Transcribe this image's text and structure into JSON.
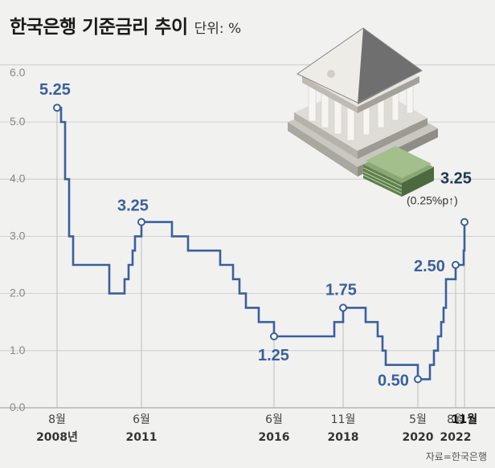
{
  "title": "한국은행 기준금리 추이",
  "unit_label": "단위: %",
  "source": "자료=한국은행",
  "colors": {
    "line": "#3a5f9e",
    "annotation": "#3a5f9e",
    "annotation_dark": "#1f3554",
    "axis": "#888888",
    "grid": "#c8c8c8",
    "background": "#f1f1f0"
  },
  "icon": "bank-building-icon",
  "chart_data": {
    "type": "line",
    "step": true,
    "yticks": [
      "6.0",
      "5.0",
      "4.0",
      "3.0",
      "2.0",
      "1.0",
      "0.0"
    ],
    "ylim": [
      0,
      6
    ],
    "grid": true,
    "series": [
      {
        "values": [
          5.25,
          5.0,
          4.0,
          3.0,
          2.5,
          2.0,
          2.0,
          2.25,
          2.5,
          2.75,
          3.0,
          3.25,
          3.25,
          3.0,
          2.75,
          2.5,
          2.5,
          2.25,
          2.0,
          1.75,
          1.5,
          1.25,
          1.25,
          1.5,
          1.75,
          1.75,
          1.5,
          1.25,
          1.0,
          0.75,
          0.5,
          0.5,
          0.75,
          1.0,
          1.25,
          1.5,
          1.75,
          2.25,
          2.5,
          2.5,
          2.75,
          3.0,
          3.25
        ]
      }
    ],
    "xticks": [
      {
        "month": "8월",
        "year": "2008년",
        "index": 0
      },
      {
        "month": "6월",
        "year": "2011",
        "index": 11
      },
      {
        "month": "6월",
        "year": "2016",
        "index": 21
      },
      {
        "month": "11월",
        "year": "2018",
        "index": 24
      },
      {
        "month": "5월",
        "year": "2020",
        "index": 30
      },
      {
        "month": "8월",
        "year": "2022",
        "index": 38
      },
      {
        "month": "11월",
        "year": "",
        "index": 42
      }
    ],
    "annotations": [
      {
        "text": "5.25",
        "index": 0
      },
      {
        "text": "3.25",
        "index": 11
      },
      {
        "text": "1.25",
        "index": 21
      },
      {
        "text": "1.75",
        "index": 24
      },
      {
        "text": "0.50",
        "index": 30
      },
      {
        "text": "2.50",
        "index": 38
      },
      {
        "text": "3.25",
        "index": 42,
        "note": "(0.25%p↑)"
      }
    ]
  }
}
